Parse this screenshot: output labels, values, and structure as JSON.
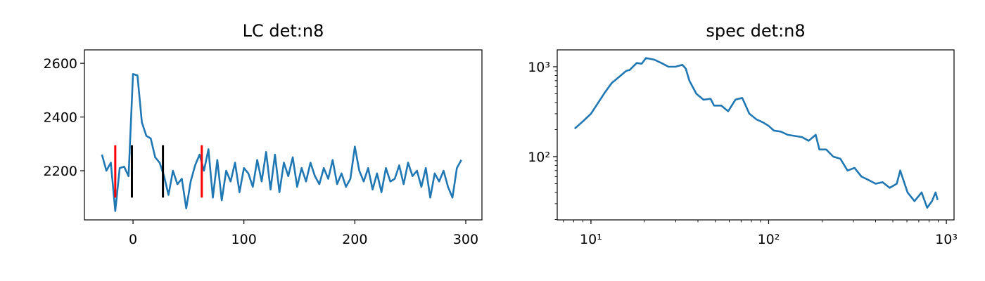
{
  "chart_data": [
    {
      "type": "line",
      "title": "LC det:n8",
      "x": [
        -28,
        -24,
        -20,
        -16,
        -12,
        -8,
        -4,
        0,
        4,
        8,
        12,
        16,
        20,
        24,
        28,
        32,
        36,
        40,
        44,
        48,
        52,
        56,
        60,
        64,
        68,
        72,
        76,
        80,
        84,
        88,
        92,
        96,
        100,
        104,
        108,
        112,
        116,
        120,
        124,
        128,
        132,
        136,
        140,
        144,
        148,
        152,
        156,
        160,
        164,
        168,
        172,
        176,
        180,
        184,
        188,
        192,
        196,
        200,
        204,
        208,
        212,
        216,
        220,
        224,
        228,
        232,
        236,
        240,
        244,
        248,
        252,
        256,
        260,
        264,
        268,
        272,
        276,
        280,
        284,
        288,
        292,
        296
      ],
      "series": [
        {
          "color": "#1f77b4",
          "values": [
            2260,
            2200,
            2230,
            2050,
            2210,
            2215,
            2180,
            2560,
            2555,
            2380,
            2330,
            2320,
            2250,
            2230,
            2180,
            2110,
            2200,
            2150,
            2170,
            2060,
            2160,
            2220,
            2260,
            2200,
            2280,
            2100,
            2240,
            2090,
            2200,
            2160,
            2230,
            2120,
            2210,
            2190,
            2140,
            2240,
            2160,
            2270,
            2130,
            2260,
            2120,
            2230,
            2180,
            2250,
            2140,
            2210,
            2160,
            2230,
            2180,
            2150,
            2210,
            2170,
            2240,
            2150,
            2190,
            2140,
            2170,
            2290,
            2200,
            2160,
            2210,
            2130,
            2190,
            2120,
            2210,
            2160,
            2170,
            2220,
            2150,
            2230,
            2180,
            2200,
            2140,
            2210,
            2100,
            2190,
            2160,
            2200,
            2140,
            2100,
            2210,
            2240
          ]
        }
      ],
      "vlines": [
        {
          "x": -16,
          "ymin": 2100,
          "ymax": 2295,
          "color": "#ff0000"
        },
        {
          "x": -1,
          "ymin": 2100,
          "ymax": 2295,
          "color": "#000000"
        },
        {
          "x": 27,
          "ymin": 2100,
          "ymax": 2295,
          "color": "#000000"
        },
        {
          "x": 62,
          "ymin": 2100,
          "ymax": 2295,
          "color": "#ff0000"
        }
      ],
      "xlim": [
        -43.8,
        314.6
      ],
      "ylim": [
        2017,
        2650
      ],
      "xticks": [
        0,
        100,
        200,
        300
      ],
      "yticks": [
        2200,
        2400,
        2600
      ]
    },
    {
      "type": "line",
      "title": "spec det:n8",
      "xscale": "log",
      "yscale": "log",
      "x": [
        8.1,
        8.97,
        10,
        11,
        12,
        13.1,
        14.4,
        15.8,
        16.5,
        18.1,
        19.3,
        20.4,
        22.7,
        24.9,
        27.3,
        29.9,
        32.7,
        34.2,
        35.8,
        39.2,
        43,
        47.1,
        49.3,
        54.1,
        59.2,
        65,
        71,
        77.9,
        85.3,
        93,
        100,
        107,
        117,
        128,
        140,
        154,
        168,
        184,
        193,
        211,
        231,
        253,
        278,
        304,
        333,
        365,
        400,
        438,
        480,
        526,
        550,
        605,
        662,
        726,
        780,
        830,
        870,
        893
      ],
      "series": [
        {
          "color": "#1f77b4",
          "values": [
            205,
            245,
            300,
            400,
            520,
            660,
            770,
            900,
            920,
            1100,
            1080,
            1250,
            1200,
            1100,
            1000,
            1000,
            1050,
            950,
            700,
            500,
            430,
            440,
            370,
            370,
            320,
            430,
            450,
            300,
            260,
            240,
            220,
            195,
            190,
            175,
            170,
            165,
            150,
            175,
            120,
            120,
            100,
            95,
            70,
            75,
            60,
            55,
            50,
            52,
            45,
            50,
            70,
            40,
            32,
            40,
            27,
            32,
            40,
            33
          ]
        }
      ],
      "xlim": [
        6.46,
        1105
      ],
      "ylim": [
        19.8,
        1540
      ],
      "xticks": [
        {
          "value": 10,
          "label": "10¹"
        },
        {
          "value": 100,
          "label": "10²"
        },
        {
          "value": 1000,
          "label": "10³"
        }
      ],
      "yticks": [
        {
          "value": 100,
          "label": "10²"
        },
        {
          "value": 1000,
          "label": "10³"
        }
      ],
      "xminorticks": [
        7,
        8,
        9,
        20,
        30,
        40,
        50,
        60,
        70,
        80,
        90,
        200,
        300,
        400,
        500,
        600,
        700,
        800,
        900
      ],
      "yminorticks": [
        20,
        30,
        40,
        50,
        60,
        70,
        80,
        90,
        200,
        300,
        400,
        500,
        600,
        700,
        800,
        900
      ]
    }
  ]
}
